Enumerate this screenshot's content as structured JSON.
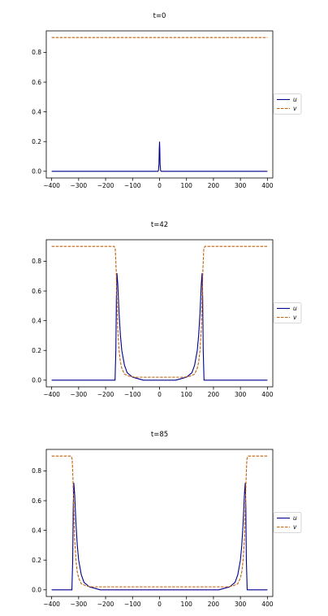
{
  "chart_data": [
    {
      "type": "line",
      "title": "t=0",
      "xlim": [
        -420,
        420
      ],
      "ylim": [
        -0.045,
        0.945
      ],
      "xticks": [
        "−400",
        "−300",
        "−200",
        "−100",
        "0",
        "100",
        "200",
        "300",
        "400"
      ],
      "yticks": [
        "0.0",
        "0.2",
        "0.4",
        "0.6",
        "0.8"
      ],
      "xtick_values": [
        -400,
        -300,
        -200,
        -100,
        0,
        100,
        200,
        300,
        400
      ],
      "ytick_values": [
        0.0,
        0.2,
        0.4,
        0.6,
        0.8
      ],
      "grid": false,
      "legend_position": "right",
      "series": [
        {
          "name": "u",
          "color": "#00008b",
          "style": "solid",
          "points": [
            [
              -400,
              0.0
            ],
            [
              -6,
              0.0
            ],
            [
              -4,
              0.005
            ],
            [
              -2,
              0.05
            ],
            [
              -1,
              0.15
            ],
            [
              0,
              0.2
            ],
            [
              1,
              0.15
            ],
            [
              2,
              0.05
            ],
            [
              4,
              0.005
            ],
            [
              6,
              0.0
            ],
            [
              400,
              0.0
            ]
          ]
        },
        {
          "name": "v",
          "color": "#c0600a",
          "style": "dashed",
          "points": [
            [
              -400,
              0.9
            ],
            [
              400,
              0.9
            ]
          ]
        }
      ]
    },
    {
      "type": "line",
      "title": "t=42",
      "xlim": [
        -420,
        420
      ],
      "ylim": [
        -0.045,
        0.945
      ],
      "xticks": [
        "−400",
        "−300",
        "−200",
        "−100",
        "0",
        "100",
        "200",
        "300",
        "400"
      ],
      "yticks": [
        "0.0",
        "0.2",
        "0.4",
        "0.6",
        "0.8"
      ],
      "xtick_values": [
        -400,
        -300,
        -200,
        -100,
        0,
        100,
        200,
        300,
        400
      ],
      "ytick_values": [
        0.0,
        0.2,
        0.4,
        0.6,
        0.8
      ],
      "grid": false,
      "legend_position": "right",
      "series": [
        {
          "name": "u",
          "color": "#00008b",
          "style": "solid",
          "points": [
            [
              -400,
              0.0
            ],
            [
              -165,
              0.0
            ],
            [
              -162,
              0.2
            ],
            [
              -160,
              0.55
            ],
            [
              -158,
              0.72
            ],
            [
              -155,
              0.65
            ],
            [
              -150,
              0.45
            ],
            [
              -145,
              0.3
            ],
            [
              -140,
              0.2
            ],
            [
              -130,
              0.1
            ],
            [
              -120,
              0.05
            ],
            [
              -100,
              0.02
            ],
            [
              -80,
              0.01
            ],
            [
              -60,
              0.0
            ],
            [
              60,
              0.0
            ],
            [
              80,
              0.01
            ],
            [
              100,
              0.02
            ],
            [
              120,
              0.05
            ],
            [
              130,
              0.1
            ],
            [
              140,
              0.2
            ],
            [
              145,
              0.3
            ],
            [
              150,
              0.45
            ],
            [
              155,
              0.65
            ],
            [
              158,
              0.72
            ],
            [
              160,
              0.55
            ],
            [
              162,
              0.2
            ],
            [
              165,
              0.0
            ],
            [
              400,
              0.0
            ]
          ]
        },
        {
          "name": "v",
          "color": "#c0600a",
          "style": "dashed",
          "points": [
            [
              -400,
              0.9
            ],
            [
              -168,
              0.9
            ],
            [
              -164,
              0.88
            ],
            [
              -161,
              0.75
            ],
            [
              -158,
              0.55
            ],
            [
              -155,
              0.35
            ],
            [
              -150,
              0.2
            ],
            [
              -145,
              0.12
            ],
            [
              -140,
              0.08
            ],
            [
              -130,
              0.04
            ],
            [
              -110,
              0.025
            ],
            [
              -90,
              0.02
            ],
            [
              90,
              0.02
            ],
            [
              110,
              0.025
            ],
            [
              130,
              0.04
            ],
            [
              140,
              0.08
            ],
            [
              145,
              0.12
            ],
            [
              150,
              0.2
            ],
            [
              155,
              0.35
            ],
            [
              158,
              0.55
            ],
            [
              161,
              0.75
            ],
            [
              164,
              0.88
            ],
            [
              168,
              0.9
            ],
            [
              400,
              0.9
            ]
          ]
        }
      ]
    },
    {
      "type": "line",
      "title": "t=85",
      "xlim": [
        -420,
        420
      ],
      "ylim": [
        -0.045,
        0.945
      ],
      "xticks": [
        "−400",
        "−300",
        "−200",
        "−100",
        "0",
        "100",
        "200",
        "300",
        "400"
      ],
      "yticks": [
        "0.0",
        "0.2",
        "0.4",
        "0.6",
        "0.8"
      ],
      "xtick_values": [
        -400,
        -300,
        -200,
        -100,
        0,
        100,
        200,
        300,
        400
      ],
      "ytick_values": [
        0.0,
        0.2,
        0.4,
        0.6,
        0.8
      ],
      "grid": false,
      "legend_position": "right",
      "series": [
        {
          "name": "u",
          "color": "#00008b",
          "style": "solid",
          "points": [
            [
              -400,
              0.0
            ],
            [
              -325,
              0.0
            ],
            [
              -322,
              0.2
            ],
            [
              -320,
              0.55
            ],
            [
              -318,
              0.72
            ],
            [
              -315,
              0.65
            ],
            [
              -310,
              0.45
            ],
            [
              -305,
              0.3
            ],
            [
              -300,
              0.2
            ],
            [
              -290,
              0.1
            ],
            [
              -280,
              0.05
            ],
            [
              -260,
              0.02
            ],
            [
              -240,
              0.01
            ],
            [
              -220,
              0.0
            ],
            [
              220,
              0.0
            ],
            [
              240,
              0.01
            ],
            [
              260,
              0.02
            ],
            [
              280,
              0.05
            ],
            [
              290,
              0.1
            ],
            [
              300,
              0.2
            ],
            [
              305,
              0.3
            ],
            [
              310,
              0.45
            ],
            [
              315,
              0.65
            ],
            [
              318,
              0.72
            ],
            [
              320,
              0.55
            ],
            [
              322,
              0.2
            ],
            [
              325,
              0.0
            ],
            [
              400,
              0.0
            ]
          ]
        },
        {
          "name": "v",
          "color": "#c0600a",
          "style": "dashed",
          "points": [
            [
              -400,
              0.9
            ],
            [
              -328,
              0.9
            ],
            [
              -324,
              0.88
            ],
            [
              -321,
              0.75
            ],
            [
              -318,
              0.55
            ],
            [
              -315,
              0.35
            ],
            [
              -310,
              0.2
            ],
            [
              -305,
              0.12
            ],
            [
              -300,
              0.08
            ],
            [
              -290,
              0.04
            ],
            [
              -270,
              0.025
            ],
            [
              -250,
              0.02
            ],
            [
              250,
              0.02
            ],
            [
              270,
              0.025
            ],
            [
              290,
              0.04
            ],
            [
              300,
              0.08
            ],
            [
              305,
              0.12
            ],
            [
              310,
              0.2
            ],
            [
              315,
              0.35
            ],
            [
              318,
              0.55
            ],
            [
              321,
              0.75
            ],
            [
              324,
              0.88
            ],
            [
              328,
              0.9
            ],
            [
              400,
              0.9
            ]
          ]
        }
      ]
    }
  ]
}
